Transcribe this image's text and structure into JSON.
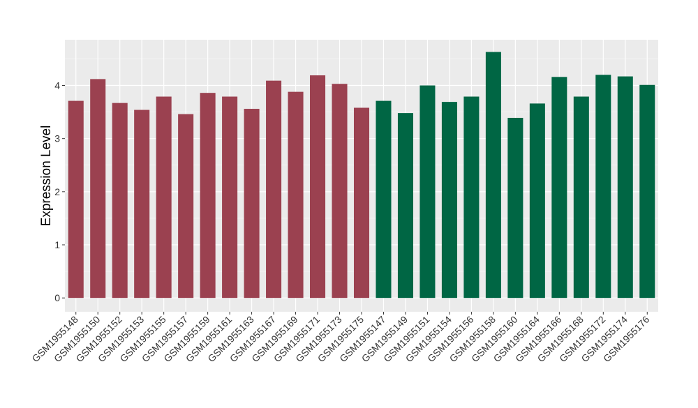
{
  "chart_data": {
    "type": "bar",
    "title": "",
    "xlabel": "",
    "ylabel": "Expression Level",
    "ylim": [
      -0.26,
      4.86
    ],
    "yticks": [
      0,
      1,
      2,
      3,
      4
    ],
    "grid": true,
    "categories": [
      "GSM1955148",
      "GSM1955150",
      "GSM1955152",
      "GSM1955153",
      "GSM1955155",
      "GSM1955157",
      "GSM1955159",
      "GSM1955161",
      "GSM1955163",
      "GSM1955167",
      "GSM1955169",
      "GSM1955171",
      "GSM1955173",
      "GSM1955175",
      "GSM1955147",
      "GSM1955149",
      "GSM1955151",
      "GSM1955154",
      "GSM1955156",
      "GSM1955158",
      "GSM1955160",
      "GSM1955164",
      "GSM1955166",
      "GSM1955168",
      "GSM1955172",
      "GSM1955174",
      "GSM1955176"
    ],
    "values": [
      3.71,
      4.12,
      3.67,
      3.54,
      3.79,
      3.46,
      3.86,
      3.79,
      3.56,
      4.09,
      3.88,
      4.19,
      4.03,
      3.58,
      3.71,
      3.48,
      4.0,
      3.69,
      3.79,
      4.63,
      3.39,
      3.66,
      4.16,
      3.79,
      4.2,
      4.17,
      4.01
    ],
    "groups": [
      0,
      0,
      0,
      0,
      0,
      0,
      0,
      0,
      0,
      0,
      0,
      0,
      0,
      0,
      1,
      1,
      1,
      1,
      1,
      1,
      1,
      1,
      1,
      1,
      1,
      1,
      1
    ],
    "colors": [
      "#9B4150",
      "#006644"
    ],
    "legend": "none"
  }
}
